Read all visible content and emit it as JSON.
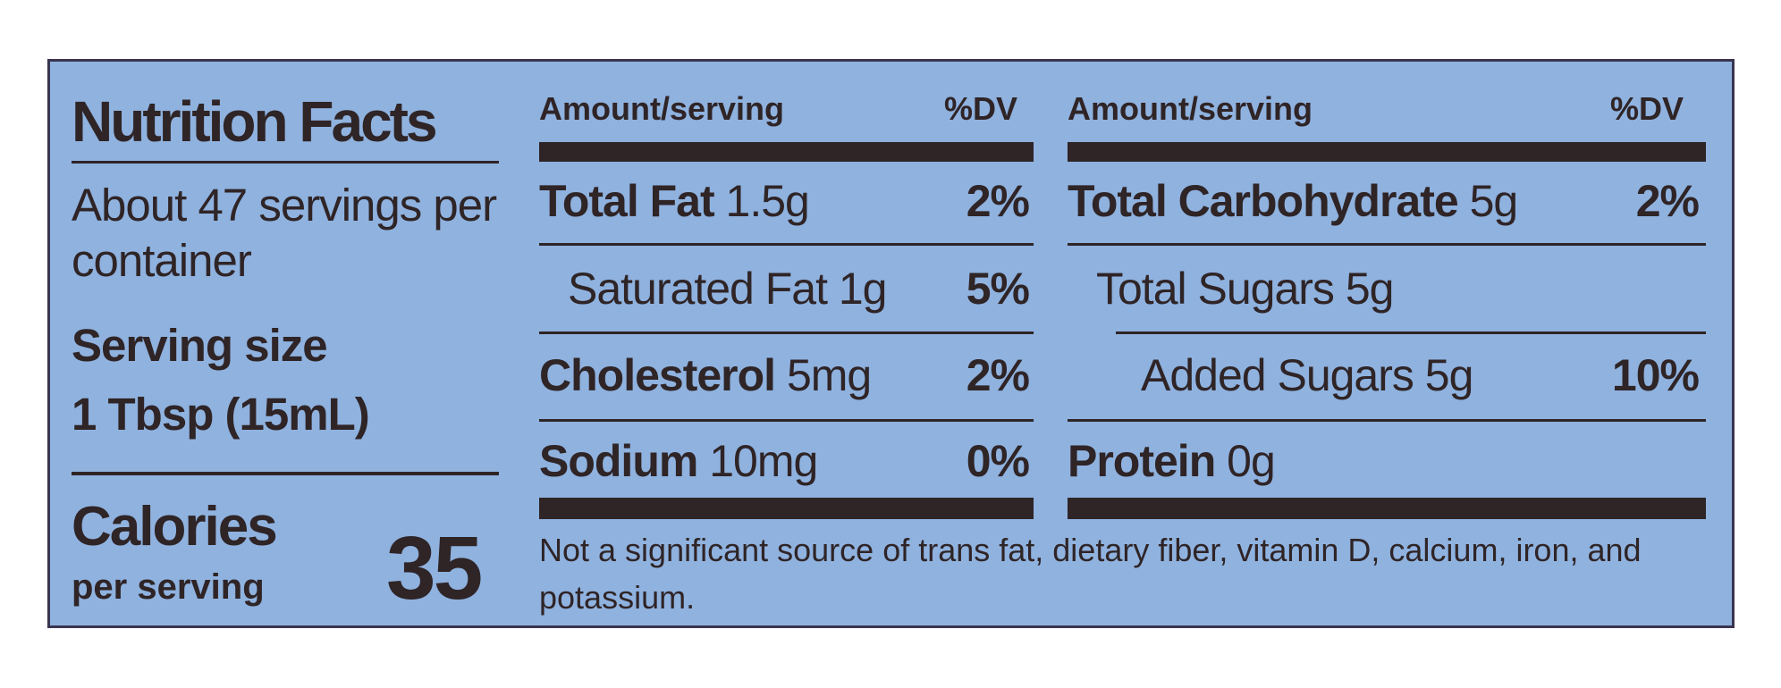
{
  "title": "Nutrition Facts",
  "servings": "About 47 servings per container",
  "serving_size_label": "Serving size",
  "serving_size": "1 Tbsp (15mL)",
  "calories_label": "Calories",
  "calories_sub": "per serving",
  "calories": 35,
  "left_header": {
    "amount": "Amount/serving",
    "dv": "%DV"
  },
  "right_header": {
    "amount": "Amount/serving",
    "dv": "%DV"
  },
  "left_rows": [
    {
      "name": "Total Fat",
      "amount": "1.5g",
      "dv": "2%"
    },
    {
      "name": "Saturated Fat 1g",
      "dv": "5%"
    },
    {
      "name": "Cholesterol",
      "amount": "5mg",
      "dv": "2%"
    },
    {
      "name": "Sodium",
      "amount": "10mg",
      "dv": "0%"
    }
  ],
  "right_rows": [
    {
      "name": "Total Carbohydrate",
      "amount": "5g",
      "dv": "2%"
    },
    {
      "name": "Total Sugars 5g"
    },
    {
      "name": "Added Sugars 5g",
      "dv": "10%"
    },
    {
      "name": "Protein",
      "amount": "0g"
    }
  ],
  "footnote": "Not a significant source of trans fat, dietary fiber, vitamin D, calcium, iron, and potassium."
}
